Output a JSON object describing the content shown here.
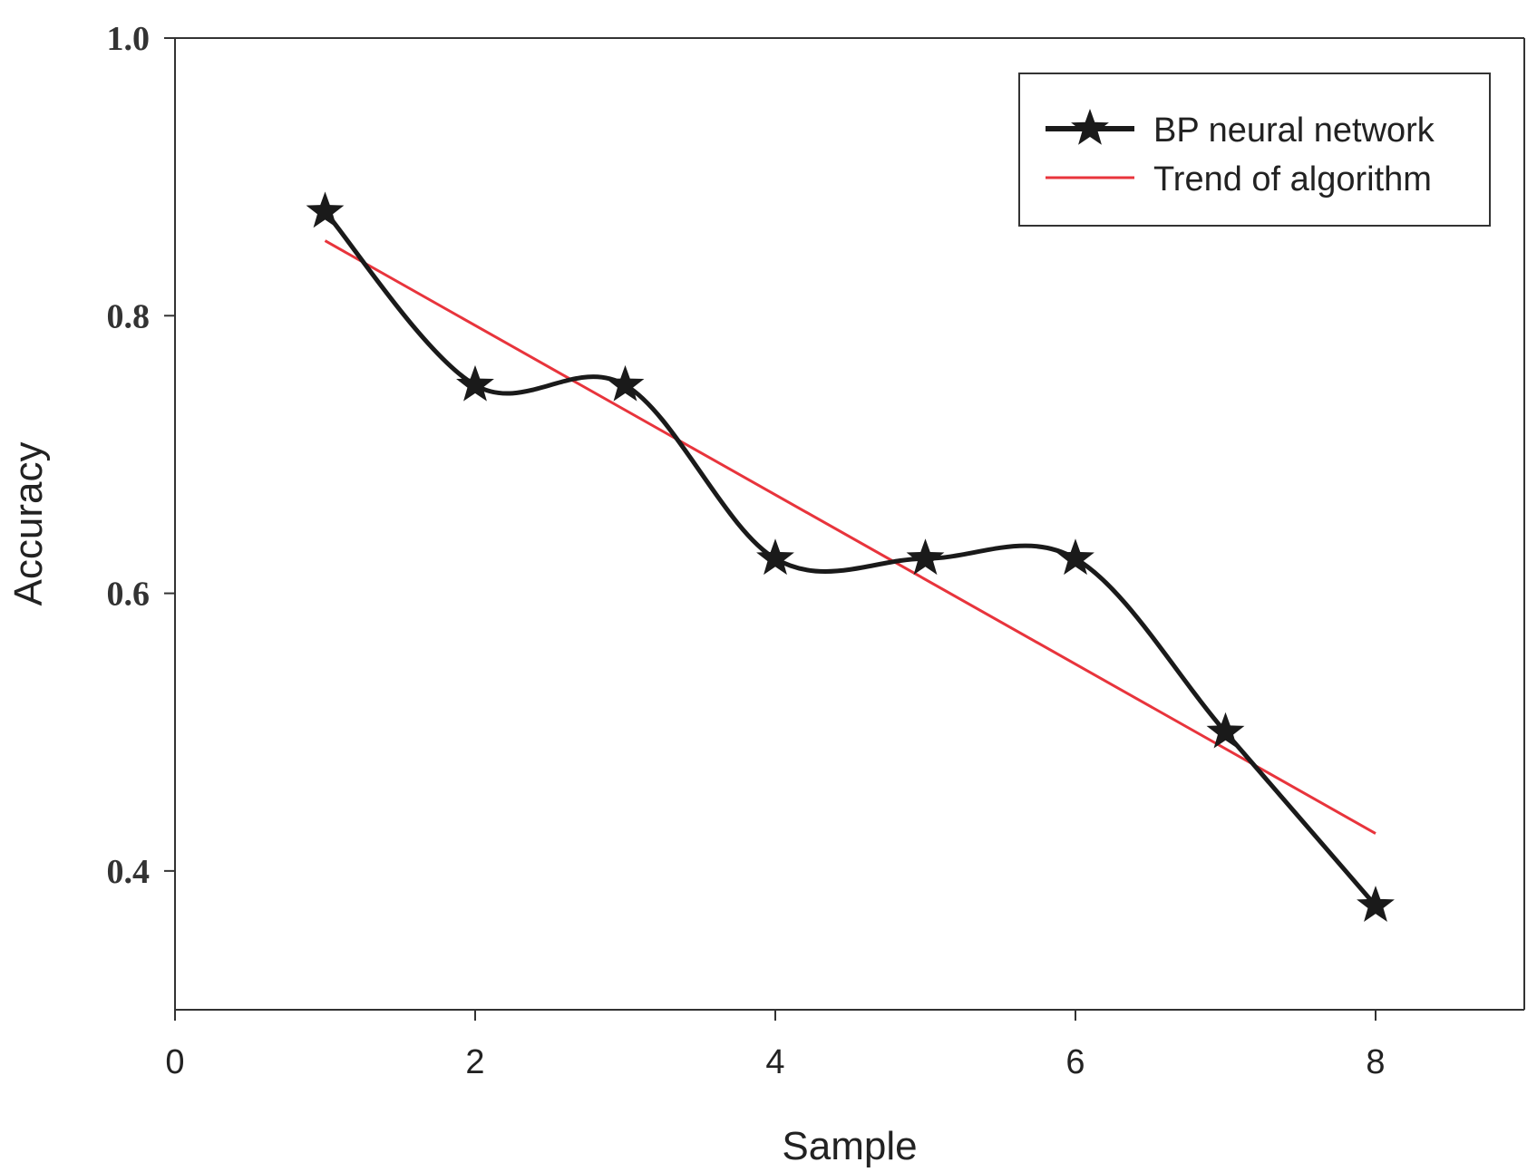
{
  "chart_data": {
    "type": "line",
    "title": "",
    "xlabel": "Sample",
    "ylabel": "Accuracy",
    "xlim": [
      0,
      9
    ],
    "ylim": [
      0.3,
      1.0
    ],
    "xticks": [
      0,
      2,
      4,
      6,
      8
    ],
    "xtick_labels": [
      "0",
      "2",
      "4",
      "6",
      "8"
    ],
    "yticks": [
      0.4,
      0.6,
      0.8,
      1.0
    ],
    "ytick_labels": [
      "0.4",
      "0.6",
      "0.8",
      "1.0"
    ],
    "grid": false,
    "legend_position": "top-right",
    "series": [
      {
        "name": "BP neural network",
        "color": "#1a1a1a",
        "marker": "star",
        "smooth": true,
        "x": [
          1,
          2,
          3,
          4,
          5,
          6,
          7,
          8
        ],
        "y": [
          0.875,
          0.75,
          0.75,
          0.625,
          0.625,
          0.625,
          0.5,
          0.375
        ]
      },
      {
        "name": "Trend of algorithm",
        "color": "#e8343c",
        "marker": "none",
        "smooth": false,
        "x": [
          1,
          8
        ],
        "y": [
          0.854,
          0.427
        ]
      }
    ]
  }
}
